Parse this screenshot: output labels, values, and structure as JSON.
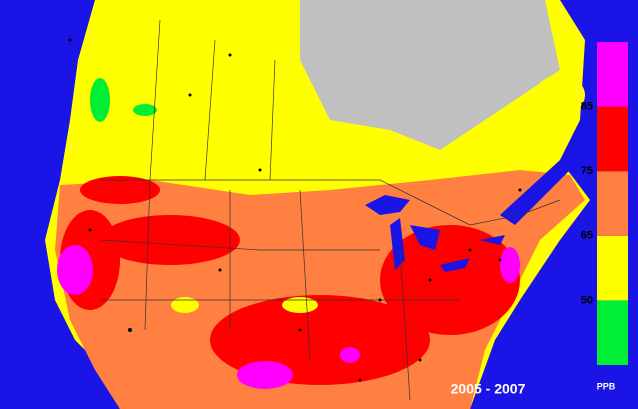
{
  "map": {
    "period": "2005 - 2007",
    "legend": {
      "unit": "PPB",
      "ticks": [
        50,
        65,
        75,
        85
      ],
      "colors": [
        "#00ee33",
        "#ffff00",
        "#ff8040",
        "#ff0000",
        "#ff00ff"
      ]
    }
  }
}
